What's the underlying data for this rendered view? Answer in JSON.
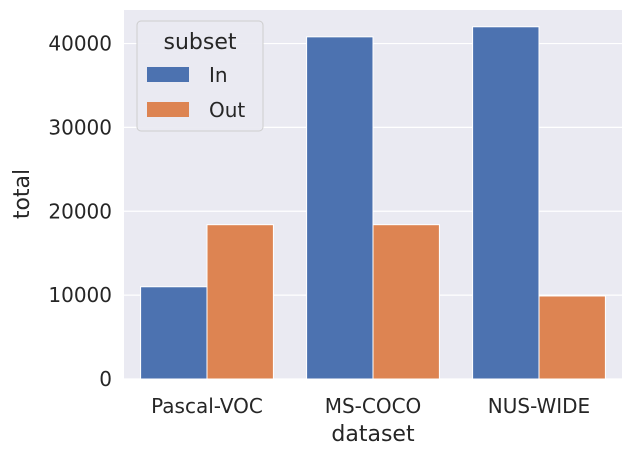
{
  "chart_data": {
    "type": "bar",
    "title": "",
    "xlabel": "dataset",
    "ylabel": "total",
    "categories": [
      "Pascal-VOC",
      "MS-COCO",
      "NUS-WIDE"
    ],
    "series": [
      {
        "name": "In",
        "values": [
          11000,
          40800,
          42000
        ],
        "color": "#4c72b0"
      },
      {
        "name": "Out",
        "values": [
          18400,
          18400,
          9900
        ],
        "color": "#dd8452"
      }
    ],
    "ylim": [
      0,
      44000
    ],
    "yticks": [
      0,
      10000,
      20000,
      30000,
      40000
    ],
    "grid": true,
    "legend": {
      "title": "subset",
      "position": "top-left"
    }
  },
  "colors": {
    "plot_background": "#eaeaf2",
    "grid": "#ffffff",
    "text": "#262626"
  }
}
